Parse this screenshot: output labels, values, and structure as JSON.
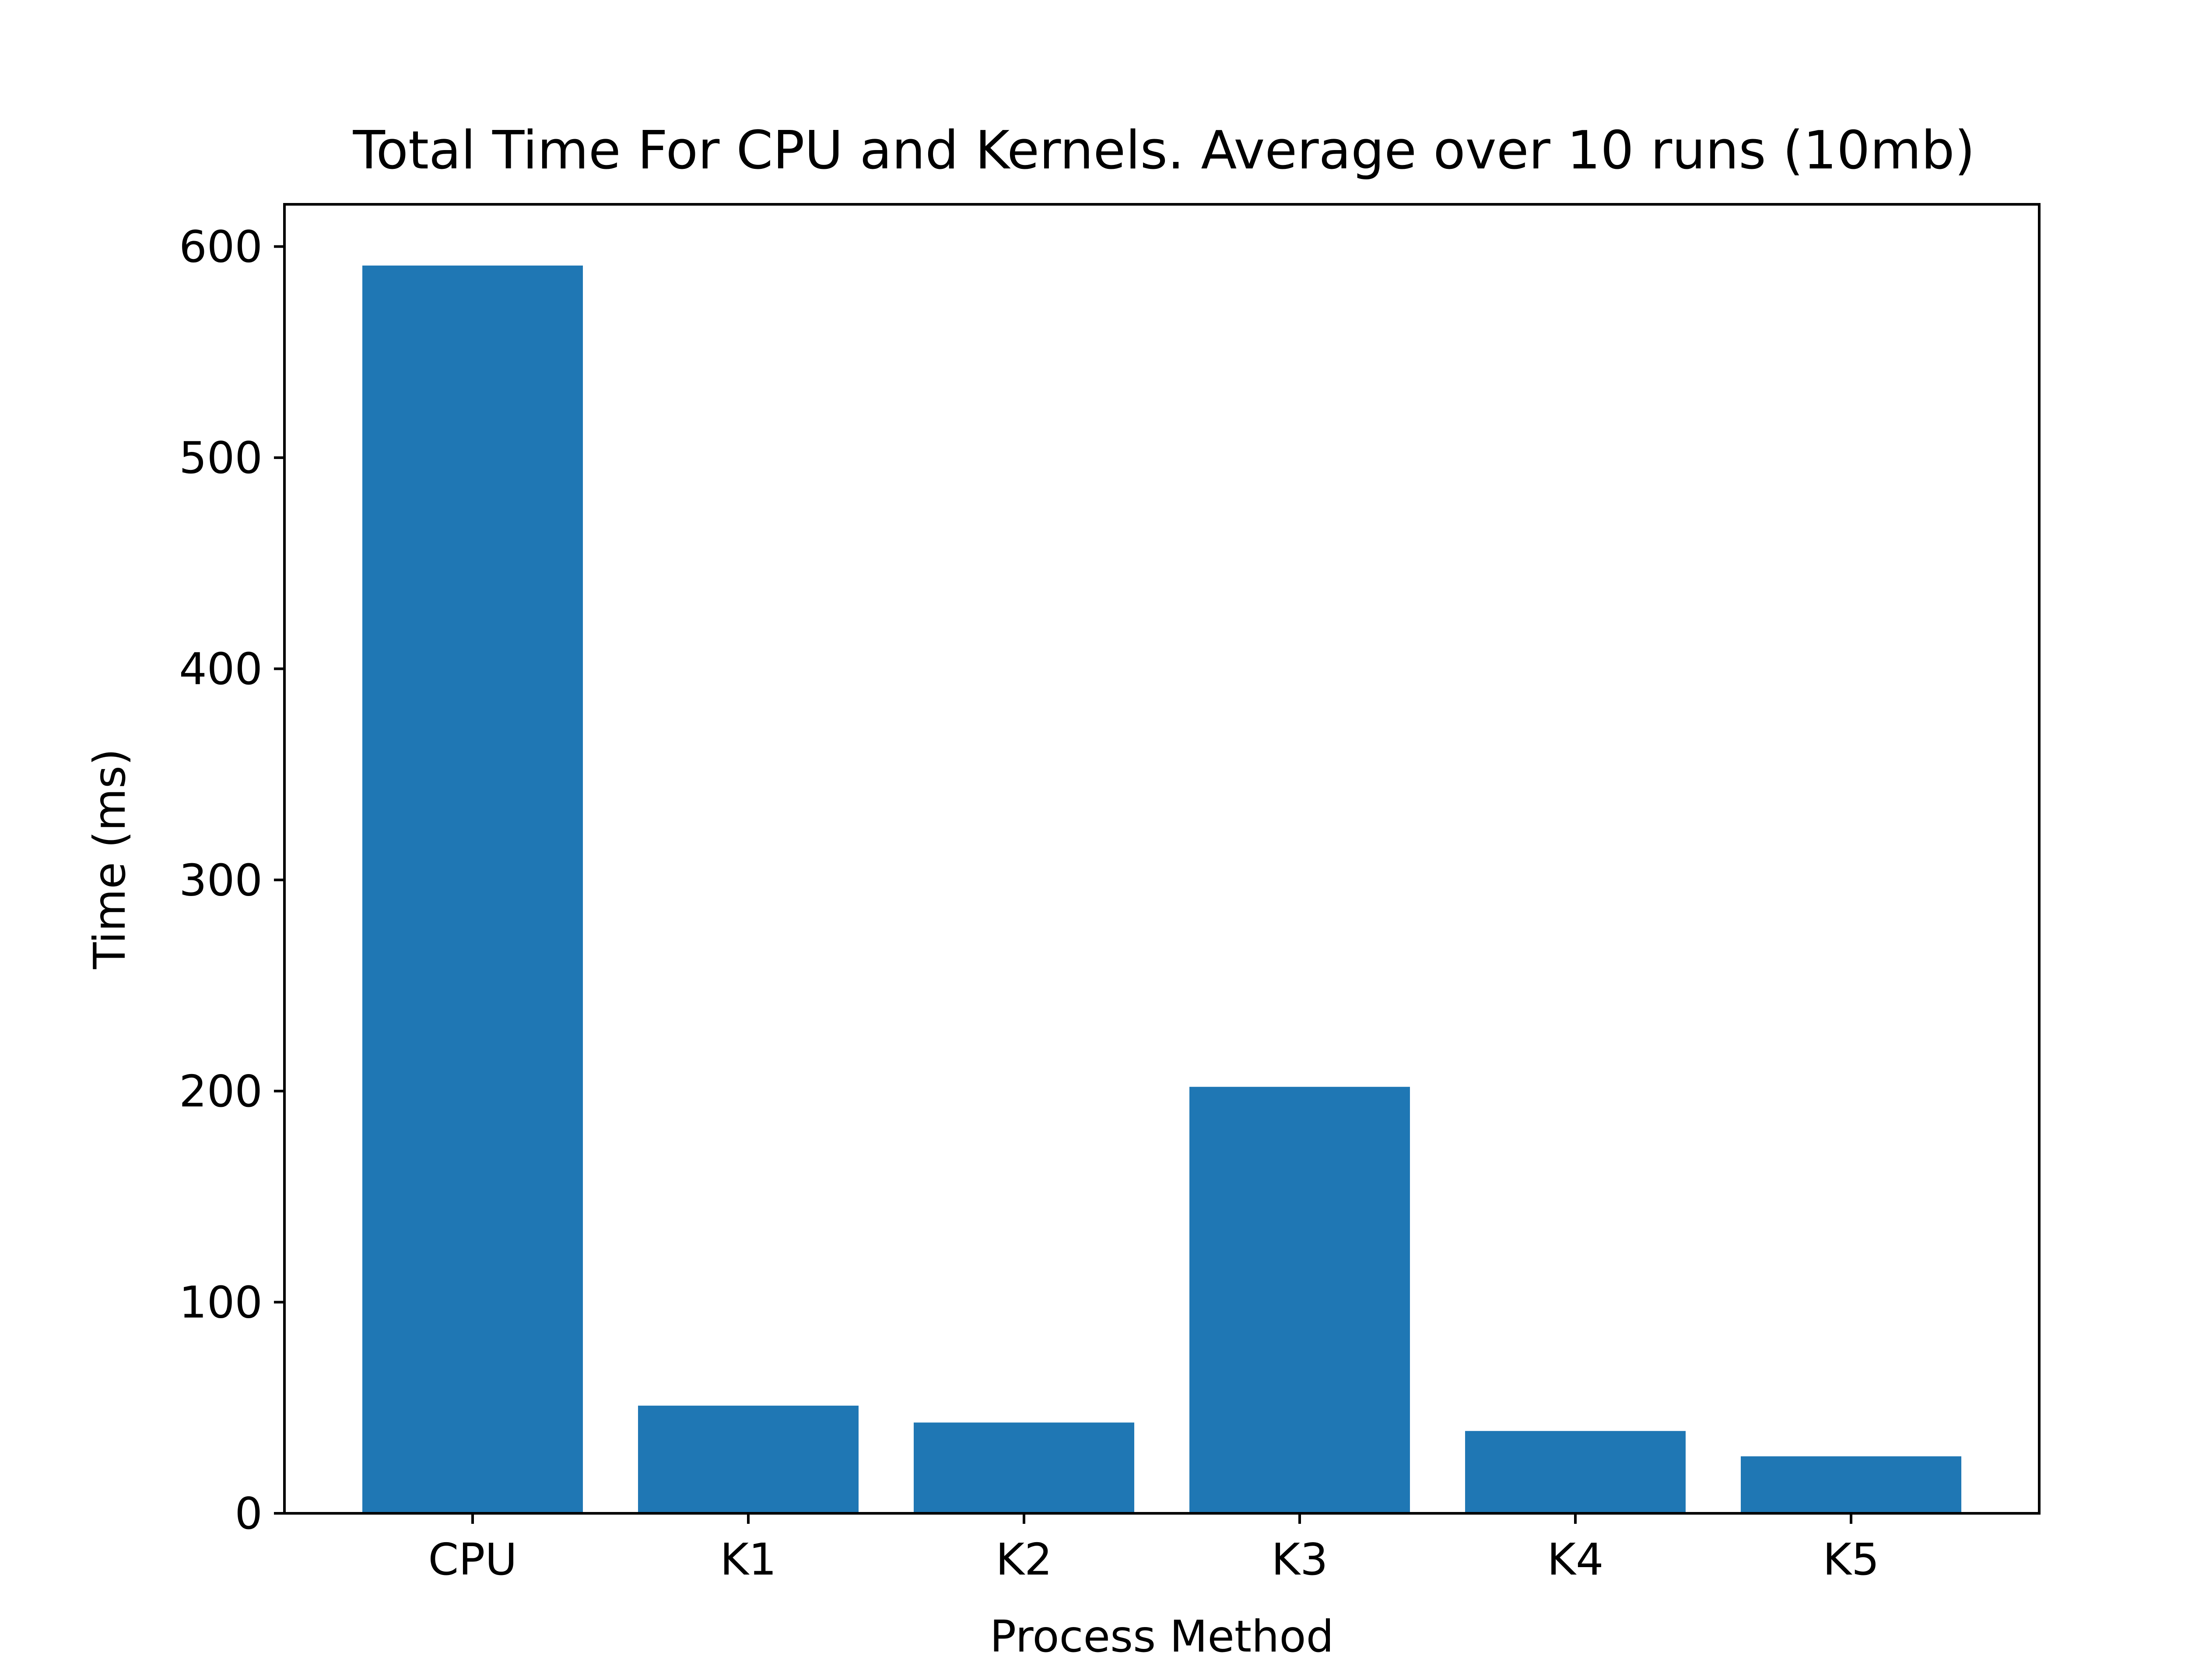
{
  "chart_data": {
    "type": "bar",
    "title": "Total Time For CPU and Kernels. Average over 10 runs (10mb)",
    "xlabel": "Process Method",
    "ylabel": "Time (ms)",
    "categories": [
      "CPU",
      "K1",
      "K2",
      "K3",
      "K4",
      "K5"
    ],
    "values": [
      591,
      51,
      43,
      202,
      39,
      27
    ],
    "ylim": [
      0,
      620
    ],
    "yticks": [
      0,
      100,
      200,
      300,
      400,
      500,
      600
    ],
    "bar_color": "#1f77b4",
    "grid": false
  }
}
